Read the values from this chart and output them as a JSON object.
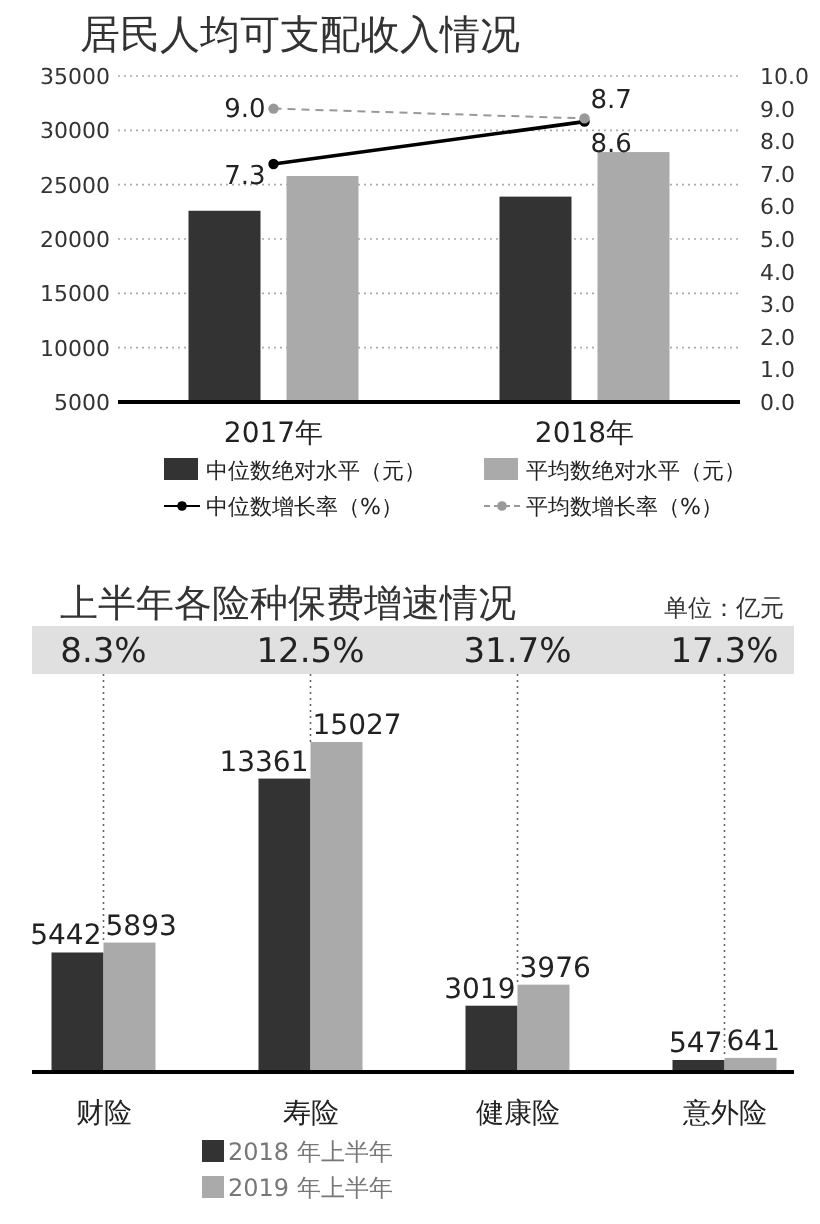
{
  "chart_data": [
    {
      "type": "bar",
      "title": "居民人均可支配收入情况",
      "categories": [
        "2017年",
        "2018年"
      ],
      "series": [
        {
          "name": "中位数绝对水平（元）",
          "color": "#333333",
          "values": [
            22600,
            23900
          ]
        },
        {
          "name": "平均数绝对水平（元）",
          "color": "#aaaaaa",
          "values": [
            25800,
            28000
          ]
        },
        {
          "name": "中位数增长率（%）",
          "type": "line",
          "axis": "y2",
          "color": "#000000",
          "marker": "circle",
          "line_style": "solid",
          "values": [
            7.3,
            8.6
          ],
          "value_labels": [
            "7.3",
            "8.6"
          ]
        },
        {
          "name": "平均数增长率（%）",
          "type": "line",
          "axis": "y2",
          "color": "#999999",
          "marker": "circle",
          "line_style": "dashed",
          "values": [
            9.0,
            8.7
          ],
          "value_labels": [
            "9.0",
            "8.7"
          ]
        }
      ],
      "ylim": [
        5000,
        35000
      ],
      "yticks": [
        5000,
        10000,
        15000,
        20000,
        25000,
        30000,
        35000
      ],
      "y2lim": [
        0,
        10
      ],
      "y2ticks": [
        {
          "value": 0,
          "label": "0.0"
        },
        {
          "value": 1,
          "label": "1.0"
        },
        {
          "value": 2,
          "label": "2.0"
        },
        {
          "value": 3,
          "label": "3.0"
        },
        {
          "value": 4,
          "label": "4.0"
        },
        {
          "value": 5,
          "label": "5.0"
        },
        {
          "value": 6,
          "label": "6.0"
        },
        {
          "value": 7,
          "label": "7.0"
        },
        {
          "value": 8,
          "label": "8.0"
        },
        {
          "value": 9,
          "label": "9.0"
        },
        {
          "value": 10,
          "label": "10.0"
        }
      ],
      "grid": "y",
      "legend": "bottom"
    },
    {
      "type": "bar",
      "title": "上半年各险种保费增速情况",
      "categories": [
        "财险",
        "寿险",
        "健康险",
        "意外险"
      ],
      "series": [
        {
          "name": "2018 年上半年",
          "color": "#333333",
          "values": [
            5442,
            13361,
            3019,
            547
          ]
        },
        {
          "name": "2019 年上半年",
          "color": "#aaaaaa",
          "values": [
            5893,
            15027,
            3976,
            641
          ]
        }
      ],
      "data_labels": true,
      "tick_labels": "x",
      "legend": "bottom left",
      "grid": "x",
      "annotations": [
        "单位：亿元",
        "8.3%",
        "12.5%",
        "31.7%",
        "17.3%"
      ]
    }
  ]
}
